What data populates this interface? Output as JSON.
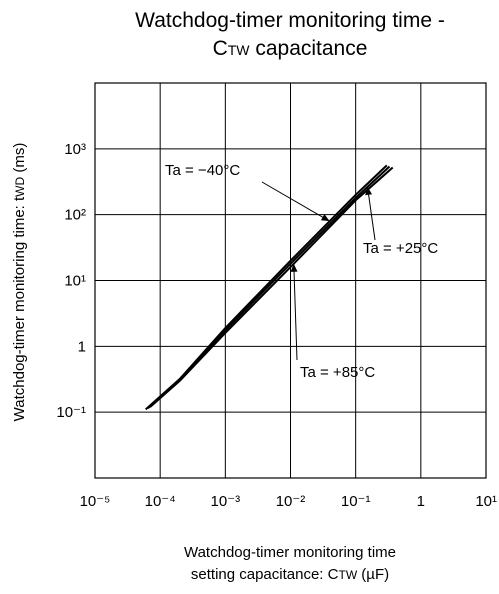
{
  "chart_data": {
    "type": "line",
    "title_line1": "Watchdog-timer monitoring time -",
    "title_line2": "CTW capacitance",
    "xlabel_line1": "Watchdog-timer monitoring time",
    "xlabel_line2": "setting capacitance: CTW (µF)",
    "ylabel": "Watchdog-timer monitoring time: tWD (ms)",
    "x_scale": "log",
    "y_scale": "log",
    "xlim": [
      1e-05,
      10
    ],
    "ylim": [
      0.01,
      10000
    ],
    "grid": true,
    "x_ticks": [
      {
        "value": 1e-05,
        "label": "10⁻⁵"
      },
      {
        "value": 0.0001,
        "label": "10⁻⁴"
      },
      {
        "value": 0.001,
        "label": "10⁻³"
      },
      {
        "value": 0.01,
        "label": "10⁻²"
      },
      {
        "value": 0.1,
        "label": "10⁻¹"
      },
      {
        "value": 1,
        "label": "1"
      },
      {
        "value": 10,
        "label": "10¹"
      }
    ],
    "y_ticks": [
      {
        "value": 0.1,
        "label": "10⁻¹"
      },
      {
        "value": 1,
        "label": "1"
      },
      {
        "value": 10,
        "label": "10¹"
      },
      {
        "value": 100,
        "label": "10²"
      },
      {
        "value": 1000,
        "label": "10³"
      }
    ],
    "series": [
      {
        "name": "Ta = −40°C",
        "x": [
          6e-05,
          0.0002,
          0.001,
          0.01,
          0.1,
          0.3
        ],
        "y": [
          0.11,
          0.32,
          1.9,
          20,
          200,
          560
        ]
      },
      {
        "name": "Ta = +25°C",
        "x": [
          6.5e-05,
          0.0002,
          0.001,
          0.01,
          0.1,
          0.33
        ],
        "y": [
          0.115,
          0.31,
          1.75,
          18,
          180,
          540
        ]
      },
      {
        "name": "Ta = +85°C",
        "x": [
          7e-05,
          0.0002,
          0.001,
          0.01,
          0.1,
          0.37
        ],
        "y": [
          0.12,
          0.3,
          1.6,
          16,
          165,
          520
        ]
      }
    ],
    "annotations": [
      {
        "text": "Ta = −40°C",
        "series": 0
      },
      {
        "text": "Ta = +25°C",
        "series": 1
      },
      {
        "text": "Ta = +85°C",
        "series": 2
      }
    ]
  }
}
